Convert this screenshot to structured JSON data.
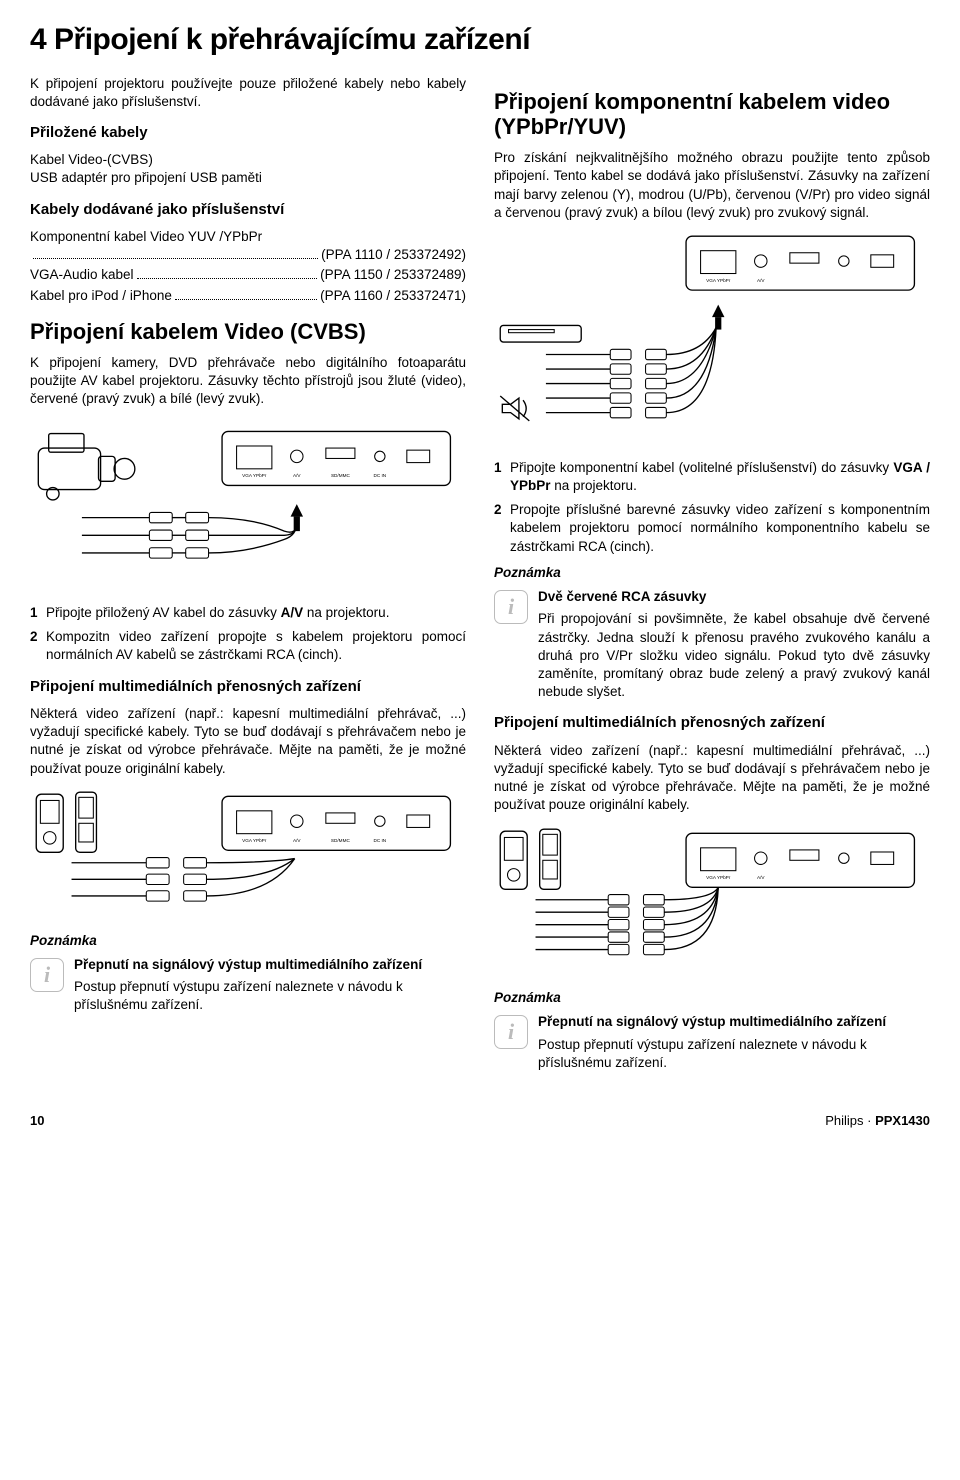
{
  "title": "4  Připojení k přehrávajícímu zařízení",
  "col1": {
    "intro": "K připojení projektoru používejte pouze přiložené kabely nebo kabely dodávané jako příslušenství.",
    "included_h": "Přiložené kabely",
    "included_p": "Kabel Video-(CVBS)\nUSB adaptér pro připojení USB paměti",
    "acc_h": "Kabely dodávané jako příslušenství",
    "acc": [
      {
        "l": "Komponentní kabel Video YUV /YPbPr",
        "r": "(PPA 1110 / 253372492)"
      },
      {
        "l": "VGA-Audio kabel",
        "r": "(PPA 1150 / 253372489)"
      },
      {
        "l": "Kabel pro iPod / iPhone",
        "r": "(PPA 1160 / 253372471)"
      }
    ],
    "cvbs_h": "Připojení kabelem Video (CVBS)",
    "cvbs_p": "K připojení kamery, DVD přehrávače nebo digitálního fotoaparátu použijte AV kabel projektoru. Zásuvky těchto přístrojů jsou žluté (video), červené (pravý zvuk) a bílé (levý zvuk).",
    "cvbs_steps": [
      {
        "n": "1",
        "t": "Připojte přiložený AV kabel do zásuvky A/V na projektoru.",
        "b": "A/V"
      },
      {
        "n": "2",
        "t": "Kompozitn video zařízení propojte s kabelem projektoru pomocí normálních AV kabelů se zástrčkami RCA (cinch)."
      }
    ],
    "mm_h": "Připojení multimediálních přenosných zařízení",
    "mm_p": "Některá video zařízení (např.: kapesní multimediální přehrávač, ...) vyžadují specifické kabely. Tyto se buď dodávají s přehrávačem nebo je nutné je získat od výrobce přehrávače. Mějte na paměti, že je možné používat pouze originální kabely.",
    "note_label": "Poznámka",
    "note1_t": "Přepnutí na signálový výstup multimediálního zařízení",
    "note1_b": "Postup přepnutí výstupu zařízení naleznete v návodu k příslušnému zařízení."
  },
  "col2": {
    "comp_h": "Připojení komponentní kabelem video (YPbPr/YUV)",
    "comp_p": "Pro získání nejkvalitnějšího možného obrazu použijte tento způsob připojení. Tento kabel se dodává jako příslušenství. Zásuvky na zařízení mají barvy zelenou (Y), modrou (U/Pb), červenou (V/Pr) pro video signál a červenou (pravý zvuk) a bílou (levý zvuk) pro zvukový signál.",
    "comp_steps": [
      {
        "n": "1",
        "t": "Připojte komponentní kabel (volitelné příslušenství) do zásuvky VGA / YPbPr na projektoru.",
        "b": "VGA / YPbPr"
      },
      {
        "n": "2",
        "t": "Propojte příslušné barevné zásuvky video zařízení s komponentním kabelem projektoru pomocí normálního komponentního kabelu se zástrčkami RCA (cinch)."
      }
    ],
    "note_label": "Poznámka",
    "note2_t": "Dvě červené RCA zásuvky",
    "note2_b": "Při propojování si povšimněte, že kabel obsahuje dvě červené zástrčky. Jedna slouží k přenosu pravého zvukového kanálu a druhá pro V/Pr složku video signálu. Pokud tyto dvě zásuvky zaměníte, promítaný obraz bude zelený a pravý zvukový kanál nebude slyšet.",
    "mm_h": "Připojení multimediálních přenosných zařízení",
    "mm_p": "Některá video zařízení (např.: kapesní multimediální přehrávač, ...) vyžadují specifické kabely. Tyto se buď dodávají s přehrávačem nebo je nutné je získat od výrobce přehrávače. Mějte na paměti, že je možné používat pouze originální kabely.",
    "note3_t": "Přepnutí na signálový výstup multimediálního zařízení",
    "note3_b": "Postup přepnutí výstupu zařízení naleznete v návodu k příslušnému zařízení."
  },
  "footer": {
    "page": "10",
    "right": "Philips · PPX1430"
  },
  "colors": {
    "yellow": "#f2c400",
    "red": "#d92a1c",
    "white": "#ffffff",
    "green": "#2a8a2a",
    "blue": "#2a4bd9",
    "grey": "#888"
  }
}
